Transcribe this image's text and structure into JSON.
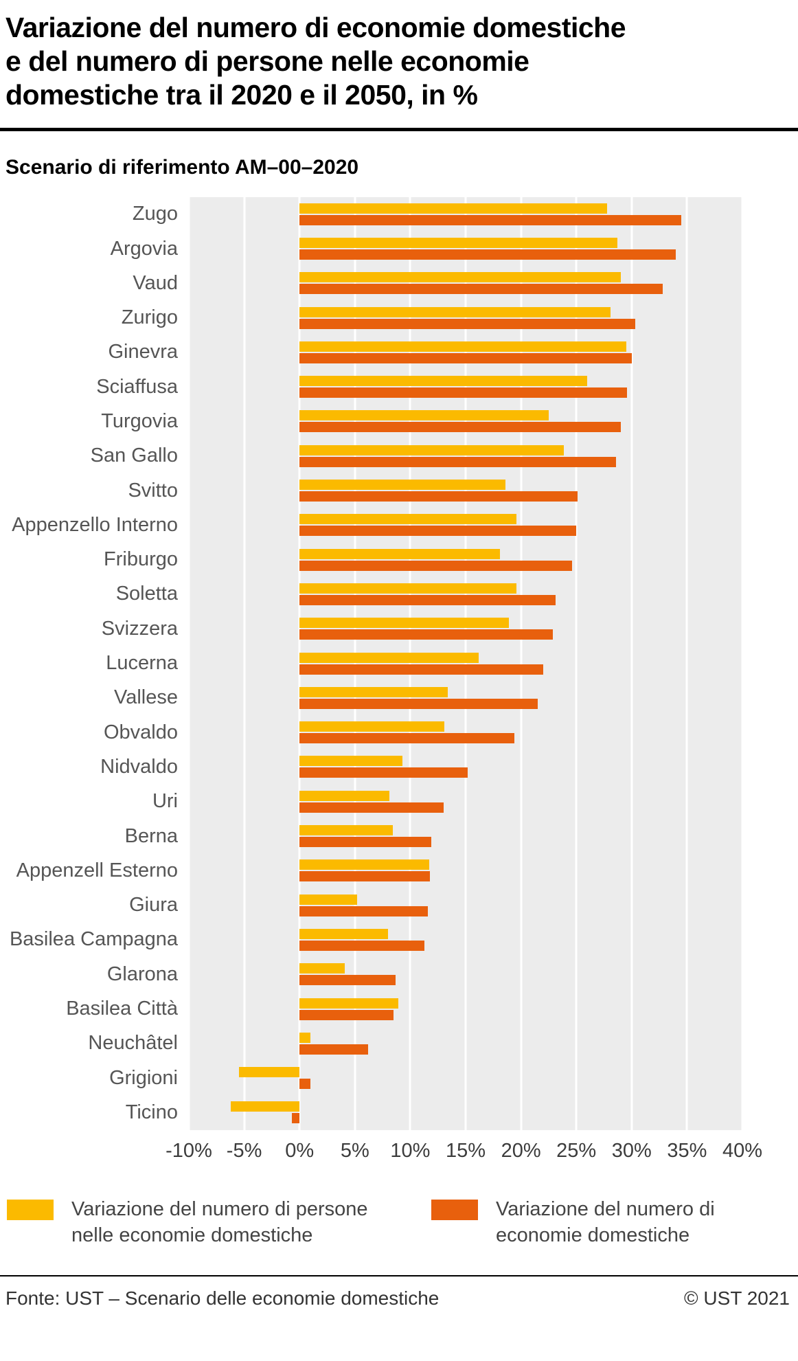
{
  "page": {
    "title_lines": [
      "Variazione del numero di economie domestiche",
      "e del numero di persone nelle economie",
      "domestiche tra il 2020 e il 2050, in %"
    ],
    "subtitle": "Scenario di riferimento AM–00–2020",
    "footer": {
      "source": "Fonte: UST – Scenario delle economie domestiche",
      "copyright": "© UST 2021"
    }
  },
  "colors": {
    "persone": "#FBBA00",
    "economie": "#E8600D",
    "plot_bg": "#ECECEC",
    "grid": "#FFFFFF"
  },
  "legend": [
    {
      "key": "persone",
      "label_lines": [
        "Variazione del numero di persone",
        "nelle economie domestiche"
      ]
    },
    {
      "key": "economie",
      "label_lines": [
        "Variazione del numero di",
        "economie domestiche"
      ]
    }
  ],
  "chart_data": {
    "type": "bar",
    "orientation": "horizontal",
    "title": "Variazione del numero di economie domestiche e del numero di persone nelle economie domestiche tra il 2020 e il 2050, in %",
    "subtitle": "Scenario di riferimento AM–00–2020",
    "xlabel": "",
    "ylabel": "",
    "xlim": [
      -10,
      40
    ],
    "x_ticks": [
      "-10%",
      "-5%",
      "0%",
      "5%",
      "10%",
      "15%",
      "20%",
      "25%",
      "30%",
      "35%",
      "40%"
    ],
    "grid": true,
    "legend_position": "bottom",
    "categories": [
      "Zugo",
      "Argovia",
      "Vaud",
      "Zurigo",
      "Ginevra",
      "Sciaffusa",
      "Turgovia",
      "San Gallo",
      "Svitto",
      "Appenzello Interno",
      "Friburgo",
      "Soletta",
      "Svizzera",
      "Lucerna",
      "Vallese",
      "Obvaldo",
      "Nidvaldo",
      "Uri",
      "Berna",
      "Appenzell Esterno",
      "Giura",
      "Basilea Campagna",
      "Glarona",
      "Basilea Città",
      "Neuchâtel",
      "Grigioni",
      "Ticino"
    ],
    "series": [
      {
        "name": "Variazione del numero di persone nelle economie domestiche",
        "color_key": "persone",
        "values": [
          27.8,
          28.7,
          29.0,
          28.1,
          29.5,
          26.0,
          22.5,
          23.9,
          18.6,
          19.6,
          18.1,
          19.6,
          18.9,
          16.2,
          13.4,
          13.1,
          9.3,
          8.1,
          8.4,
          11.7,
          5.2,
          8.0,
          4.1,
          8.9,
          1.0,
          -5.5,
          -6.2
        ]
      },
      {
        "name": "Variazione del numero di economie domestiche",
        "color_key": "economie",
        "values": [
          34.5,
          34.0,
          32.8,
          30.3,
          30.0,
          29.6,
          29.0,
          28.6,
          25.1,
          25.0,
          24.6,
          23.1,
          22.9,
          22.0,
          21.5,
          19.4,
          15.2,
          13.0,
          11.9,
          11.8,
          11.6,
          11.3,
          8.7,
          8.5,
          6.2,
          1.0,
          -0.7
        ]
      }
    ]
  }
}
